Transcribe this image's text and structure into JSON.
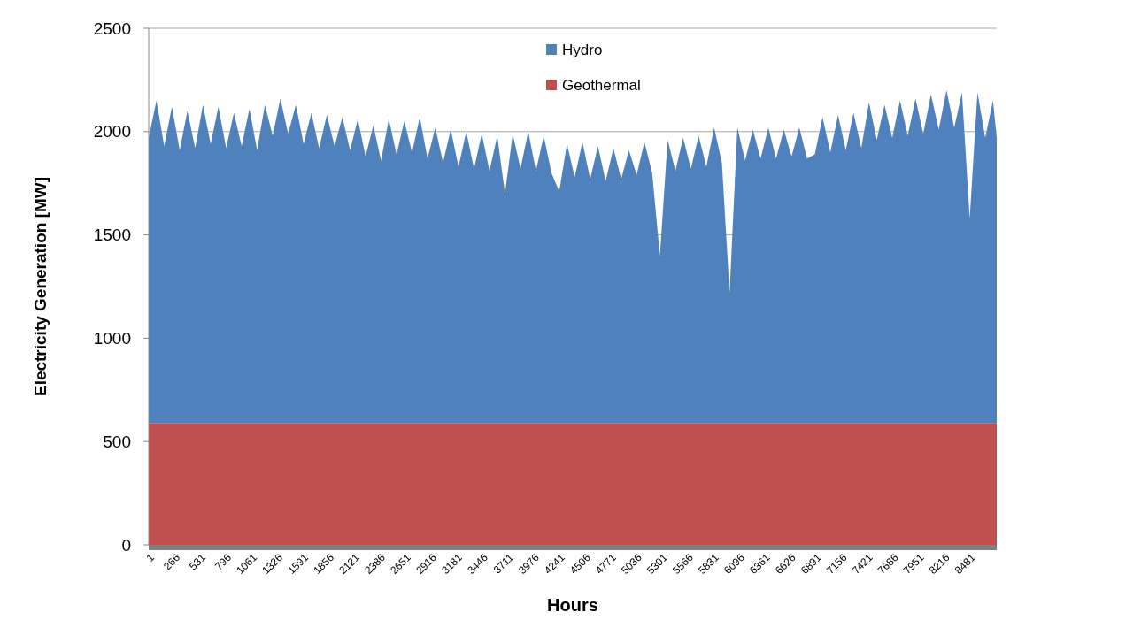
{
  "chart_data": {
    "type": "area",
    "stacked": true,
    "xlabel": "Hours",
    "ylabel": "Electricity Generation [MW]",
    "x": [
      1,
      81,
      161,
      241,
      321,
      401,
      481,
      561,
      641,
      721,
      801,
      881,
      961,
      1041,
      1121,
      1201,
      1281,
      1361,
      1441,
      1521,
      1601,
      1681,
      1761,
      1841,
      1921,
      2001,
      2081,
      2161,
      2241,
      2321,
      2401,
      2481,
      2561,
      2641,
      2721,
      2801,
      2881,
      2961,
      3041,
      3121,
      3201,
      3281,
      3361,
      3441,
      3521,
      3601,
      3681,
      3761,
      3841,
      3921,
      4001,
      4081,
      4161,
      4241,
      4321,
      4401,
      4481,
      4561,
      4641,
      4721,
      4801,
      4881,
      4961,
      5041,
      5121,
      5201,
      5281,
      5361,
      5441,
      5521,
      5601,
      5681,
      5761,
      5841,
      5921,
      6001,
      6081,
      6161,
      6241,
      6321,
      6401,
      6481,
      6561,
      6641,
      6721,
      6801,
      6881,
      6961,
      7041,
      7121,
      7201,
      7281,
      7361,
      7441,
      7521,
      7601,
      7681,
      7761,
      7841,
      7921,
      8001,
      8081,
      8161,
      8241,
      8321,
      8401,
      8481,
      8561,
      8641,
      8721,
      8760
    ],
    "series": [
      {
        "name": "Geothermal",
        "color": "#c0504d",
        "values": [
          590,
          590,
          590,
          590,
          590,
          590,
          590,
          590,
          590,
          590,
          590,
          590,
          590,
          590,
          590,
          590,
          590,
          590,
          590,
          590,
          590,
          590,
          590,
          590,
          590,
          590,
          590,
          590,
          590,
          590,
          590,
          590,
          590,
          590,
          590,
          590,
          590,
          590,
          590,
          590,
          590,
          590,
          590,
          590,
          590,
          590,
          590,
          590,
          590,
          590,
          590,
          590,
          590,
          590,
          590,
          590,
          590,
          590,
          590,
          590,
          590,
          590,
          590,
          590,
          590,
          590,
          590,
          590,
          590,
          590,
          590,
          590,
          590,
          590,
          590,
          590,
          590,
          590,
          590,
          590,
          590,
          590,
          590,
          590,
          590,
          590,
          590,
          590,
          590,
          590,
          590,
          590,
          590,
          590,
          590,
          590,
          590,
          590,
          590,
          590,
          590,
          590,
          590,
          590,
          590,
          590,
          590,
          590,
          590,
          590,
          590
        ]
      },
      {
        "name": "Hydro",
        "color": "#4f81bd",
        "values": [
          1380,
          1560,
          1340,
          1530,
          1320,
          1510,
          1330,
          1540,
          1350,
          1530,
          1330,
          1500,
          1340,
          1520,
          1320,
          1540,
          1390,
          1570,
          1400,
          1540,
          1350,
          1500,
          1330,
          1490,
          1340,
          1480,
          1320,
          1470,
          1290,
          1440,
          1270,
          1470,
          1300,
          1460,
          1310,
          1480,
          1280,
          1430,
          1260,
          1420,
          1240,
          1410,
          1230,
          1400,
          1220,
          1390,
          1110,
          1400,
          1230,
          1410,
          1220,
          1390,
          1210,
          1120,
          1350,
          1190,
          1360,
          1180,
          1340,
          1170,
          1330,
          1180,
          1320,
          1200,
          1360,
          1210,
          810,
          1370,
          1220,
          1380,
          1230,
          1390,
          1240,
          1430,
          1260,
          630,
          1430,
          1270,
          1420,
          1280,
          1430,
          1280,
          1420,
          1290,
          1430,
          1280,
          1300,
          1480,
          1310,
          1490,
          1320,
          1500,
          1330,
          1550,
          1370,
          1540,
          1380,
          1560,
          1390,
          1570,
          1400,
          1590,
          1420,
          1610,
          1430,
          1600,
          990,
          1600,
          1380,
          1560,
          1380
        ]
      }
    ],
    "xlim": [
      1,
      8760
    ],
    "xticks": [
      1,
      266,
      531,
      796,
      1061,
      1326,
      1591,
      1856,
      2121,
      2386,
      2651,
      2916,
      3181,
      3446,
      3711,
      3976,
      4241,
      4506,
      4771,
      5036,
      5301,
      5566,
      5831,
      6096,
      6361,
      6626,
      6891,
      7156,
      7421,
      7686,
      7951,
      8216,
      8481
    ],
    "ylim": [
      0,
      2500
    ],
    "yticks": [
      0,
      500,
      1000,
      1500,
      2000,
      2500
    ],
    "grid": "y",
    "legend": "top"
  }
}
